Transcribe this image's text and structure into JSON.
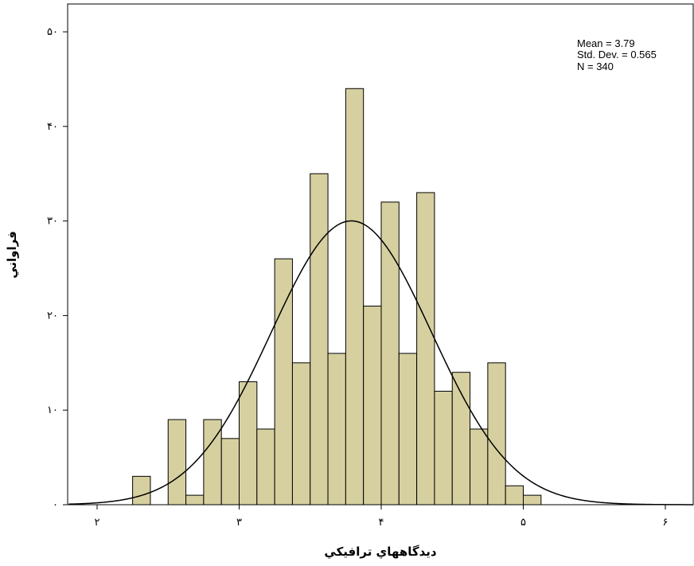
{
  "chart_data": {
    "type": "bar",
    "xlabel": "ديدگاههاي ترافيكي",
    "ylabel": "فراواني",
    "xlim": [
      1.8,
      6.2
    ],
    "ylim": [
      0,
      50
    ],
    "x_ticks": [
      {
        "value": 2,
        "label": "۲"
      },
      {
        "value": 3,
        "label": "۳"
      },
      {
        "value": 4,
        "label": "۴"
      },
      {
        "value": 5,
        "label": "۵"
      },
      {
        "value": 6,
        "label": "۶"
      }
    ],
    "y_ticks": [
      {
        "value": 0,
        "label": "۰"
      },
      {
        "value": 10,
        "label": "۱۰"
      },
      {
        "value": 20,
        "label": "۲۰"
      },
      {
        "value": 30,
        "label": "۳۰"
      },
      {
        "value": 40,
        "label": "۴۰"
      },
      {
        "value": 50,
        "label": "۵۰"
      }
    ],
    "bin_width": 0.125,
    "bins": [
      {
        "x0": 2.25,
        "value": 3
      },
      {
        "x0": 2.5,
        "value": 9
      },
      {
        "x0": 2.625,
        "value": 1
      },
      {
        "x0": 2.75,
        "value": 9
      },
      {
        "x0": 2.875,
        "value": 7
      },
      {
        "x0": 3.0,
        "value": 13
      },
      {
        "x0": 3.125,
        "value": 8
      },
      {
        "x0": 3.25,
        "value": 26
      },
      {
        "x0": 3.375,
        "value": 15
      },
      {
        "x0": 3.5,
        "value": 35
      },
      {
        "x0": 3.625,
        "value": 16
      },
      {
        "x0": 3.75,
        "value": 44
      },
      {
        "x0": 3.875,
        "value": 21
      },
      {
        "x0": 4.0,
        "value": 32
      },
      {
        "x0": 4.125,
        "value": 16
      },
      {
        "x0": 4.25,
        "value": 33
      },
      {
        "x0": 4.375,
        "value": 12
      },
      {
        "x0": 4.5,
        "value": 14
      },
      {
        "x0": 4.625,
        "value": 8
      },
      {
        "x0": 4.75,
        "value": 15
      },
      {
        "x0": 4.875,
        "value": 2
      },
      {
        "x0": 5.0,
        "value": 1
      }
    ],
    "normal_curve": {
      "mean": 3.79,
      "std": 0.565,
      "n": 340
    },
    "stats_text": [
      "Mean = 3.79",
      "Std. Dev. = 0.565",
      "N = 340"
    ],
    "bar_color": "#d6d0a0",
    "bar_stroke": "#000000",
    "curve_color": "#000000",
    "grid": false,
    "legend": "none"
  }
}
